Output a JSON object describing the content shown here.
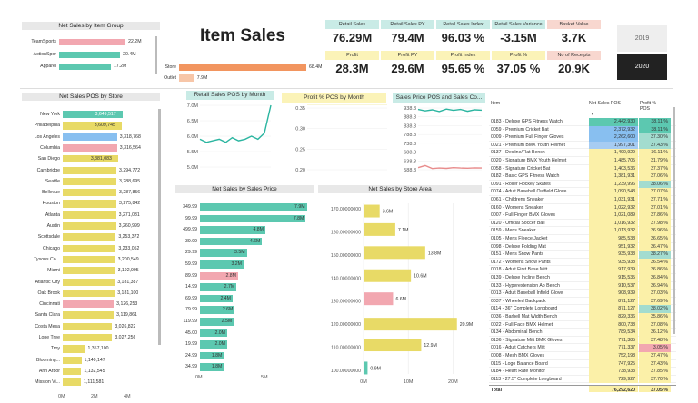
{
  "title": "Item Sales",
  "item_group": {
    "header": "Net Sales by Item Group",
    "rows": [
      {
        "label": "TeamSports",
        "value": "22.2M",
        "frac": 0.86,
        "color": "#f2a7b0"
      },
      {
        "label": "ActionSpor",
        "value": "20.4M",
        "frac": 0.79,
        "color": "#5cc8b0"
      },
      {
        "label": "Apparel",
        "value": "17.2M",
        "frac": 0.67,
        "color": "#5cc8b0"
      }
    ]
  },
  "channel": {
    "rows": [
      {
        "label": "Store",
        "value": "68.4M",
        "frac": 1.0,
        "color": "#f2955f"
      },
      {
        "label": "Outlet",
        "value": "7.9M",
        "frac": 0.12,
        "color": "#f7c6a8"
      }
    ]
  },
  "kpis": {
    "row1": [
      {
        "label": "Retail Sales",
        "value": "76.29M",
        "bg": "#c9ebe6"
      },
      {
        "label": "Retail Sales PY",
        "value": "79.4M",
        "bg": "#c9ebe6"
      },
      {
        "label": "Retail Sales Index",
        "value": "96.03 %",
        "bg": "#c9ebe6"
      },
      {
        "label": "Retail Sales Variance",
        "value": "-3.15M",
        "bg": "#c9ebe6"
      },
      {
        "label": "Basket Value",
        "value": "3.7K",
        "bg": "#f8d7cf"
      }
    ],
    "row2": [
      {
        "label": "Profit",
        "value": "28.3M",
        "bg": "#fbf3b8"
      },
      {
        "label": "Profit PY",
        "value": "29.6M",
        "bg": "#fbf3b8"
      },
      {
        "label": "Profit Index",
        "value": "95.65 %",
        "bg": "#fbf3b8"
      },
      {
        "label": "Profit %",
        "value": "37.05 %",
        "bg": "#fbf3b8"
      },
      {
        "label": "No of Receipts",
        "value": "20.9K",
        "bg": "#f8d7cf"
      }
    ]
  },
  "years": {
    "y1": "2019",
    "y2": "2020"
  },
  "by_store": {
    "header": "Net Sales POS by Store",
    "axis": [
      "0M",
      "2M",
      "4M"
    ],
    "rows": [
      {
        "label": "New York",
        "value": "3,649,517",
        "frac": 0.91,
        "color": "#5cc8b0"
      },
      {
        "label": "Philadelphia",
        "value": "3,609,745",
        "frac": 0.9,
        "color": "#e8da66"
      },
      {
        "label": "Los Angeles",
        "value": "3,318,768",
        "frac": 0.83,
        "color": "#88bff0"
      },
      {
        "label": "Columbia",
        "value": "3,316,564",
        "frac": 0.83,
        "color": "#f2a7b0"
      },
      {
        "label": "San Diego",
        "value": "3,381,083",
        "frac": 0.845,
        "color": "#e8da66"
      },
      {
        "label": "Cambridge",
        "value": "3,294,772",
        "frac": 0.82,
        "color": "#e8da66"
      },
      {
        "label": "Seattle",
        "value": "3,288,695",
        "frac": 0.82,
        "color": "#e8da66"
      },
      {
        "label": "Bellevue",
        "value": "3,287,856",
        "frac": 0.82,
        "color": "#e8da66"
      },
      {
        "label": "Houston",
        "value": "3,275,842",
        "frac": 0.82,
        "color": "#e8da66"
      },
      {
        "label": "Atlanta",
        "value": "3,271,031",
        "frac": 0.815,
        "color": "#e8da66"
      },
      {
        "label": "Austin",
        "value": "3,260,999",
        "frac": 0.815,
        "color": "#e8da66"
      },
      {
        "label": "Scottsdale",
        "value": "3,253,372",
        "frac": 0.81,
        "color": "#e8da66"
      },
      {
        "label": "Chicago",
        "value": "3,233,052",
        "frac": 0.81,
        "color": "#e8da66"
      },
      {
        "label": "Tysons Co...",
        "value": "3,200,549",
        "frac": 0.8,
        "color": "#e8da66"
      },
      {
        "label": "Miami",
        "value": "3,192,995",
        "frac": 0.8,
        "color": "#e8da66"
      },
      {
        "label": "Atlantic City",
        "value": "3,181,387",
        "frac": 0.795,
        "color": "#e8da66"
      },
      {
        "label": "Oak Brook",
        "value": "3,181,100",
        "frac": 0.795,
        "color": "#e8da66"
      },
      {
        "label": "Cincinnati",
        "value": "3,126,253",
        "frac": 0.78,
        "color": "#f2a7b0"
      },
      {
        "label": "Santa Clara",
        "value": "3,119,861",
        "frac": 0.78,
        "color": "#e8da66"
      },
      {
        "label": "Costa Mesa",
        "value": "3,026,822",
        "frac": 0.755,
        "color": "#e8da66"
      },
      {
        "label": "Lone Tree",
        "value": "3,027,256",
        "frac": 0.755,
        "color": "#e8da66"
      },
      {
        "label": "Troy",
        "value": "1,357,100",
        "frac": 0.34,
        "color": "#e8da66"
      },
      {
        "label": "Blooming...",
        "value": "1,140,147",
        "frac": 0.285,
        "color": "#e8da66"
      },
      {
        "label": "Ann Arbor",
        "value": "1,132,545",
        "frac": 0.283,
        "color": "#e8da66"
      },
      {
        "label": "Mission Vi...",
        "value": "1,111,581",
        "frac": 0.278,
        "color": "#e8da66"
      }
    ]
  },
  "retail_month": {
    "header": "Retail Sales POS by Month",
    "yticks": [
      "7.0M",
      "6.5M",
      "6.0M",
      "5.5M",
      "5.0M"
    ],
    "values": [
      5.9,
      5.8,
      5.85,
      5.9,
      5.8,
      5.95,
      5.85,
      5.9,
      6.0,
      5.9,
      6.1,
      7.0
    ],
    "color": "#2bb5a0"
  },
  "profit_month": {
    "header": "Profit % POS by Month",
    "yticks": [
      "0.35",
      "0.30",
      "0.25",
      "0.20"
    ],
    "values": [
      0.365,
      0.37,
      0.368,
      0.372,
      0.37,
      0.371,
      0.369,
      0.372,
      0.37,
      0.368,
      0.37,
      0.365
    ],
    "color": "#e8da66"
  },
  "sales_price_combo": {
    "header": "Sales Price POS and Sales Co...",
    "yticks": [
      "938.3",
      "888.3",
      "838.3",
      "788.3",
      "738.3",
      "688.3",
      "638.3",
      "588.3"
    ],
    "line1": [
      930,
      922,
      928,
      918,
      932,
      925,
      930,
      920,
      928,
      926
    ],
    "line2": [
      600,
      612,
      595,
      598,
      596,
      600,
      598,
      597,
      599,
      598
    ],
    "c1": "#2bb5a0",
    "c2": "#e88c8c"
  },
  "by_price": {
    "header": "Net Sales by Sales Price",
    "axis": [
      "0M",
      "5M"
    ],
    "rows": [
      {
        "label": "349.99",
        "value": "7.9M",
        "frac": 0.98,
        "color": "#5cc8b0"
      },
      {
        "label": "99.99",
        "value": "7.8M",
        "frac": 0.97,
        "color": "#5cc8b0"
      },
      {
        "label": "499.99",
        "value": "4.8M",
        "frac": 0.6,
        "color": "#5cc8b0"
      },
      {
        "label": "39.99",
        "value": "4.6M",
        "frac": 0.57,
        "color": "#5cc8b0"
      },
      {
        "label": "29.99",
        "value": "3.5M",
        "frac": 0.43,
        "color": "#5cc8b0"
      },
      {
        "label": "59.99",
        "value": "3.2M",
        "frac": 0.4,
        "color": "#5cc8b0"
      },
      {
        "label": "89.99",
        "value": "2.8M",
        "frac": 0.35,
        "color": "#f2a7b0"
      },
      {
        "label": "14.99",
        "value": "2.7M",
        "frac": 0.335,
        "color": "#5cc8b0"
      },
      {
        "label": "69.99",
        "value": "2.4M",
        "frac": 0.3,
        "color": "#5cc8b0"
      },
      {
        "label": "79.99",
        "value": "2.6M",
        "frac": 0.32,
        "color": "#5cc8b0"
      },
      {
        "label": "119.99",
        "value": "2.5M",
        "frac": 0.31,
        "color": "#5cc8b0"
      },
      {
        "label": "45.00",
        "value": "2.0M",
        "frac": 0.25,
        "color": "#5cc8b0"
      },
      {
        "label": "19.99",
        "value": "2.0M",
        "frac": 0.25,
        "color": "#5cc8b0"
      },
      {
        "label": "24.99",
        "value": "1.8M",
        "frac": 0.22,
        "color": "#5cc8b0"
      },
      {
        "label": "34.99",
        "value": "1.8M",
        "frac": 0.22,
        "color": "#5cc8b0"
      }
    ]
  },
  "by_area": {
    "header": "Net Sales by Store Area",
    "yticks": [
      "170.00000000",
      "160.00000000",
      "150.00000000",
      "140.00000000",
      "130.00000000",
      "120.00000000",
      "110.00000000",
      "100.00000000"
    ],
    "xticks": [
      "0M",
      "10M",
      "20M"
    ],
    "bars": [
      {
        "area": 169,
        "value": 3.6,
        "label": "3.6M",
        "color": "#e8da66"
      },
      {
        "area": 161,
        "value": 7.1,
        "label": "7.1M",
        "color": "#e8da66"
      },
      {
        "area": 151,
        "value": 13.8,
        "label": "13.8M",
        "color": "#e8da66"
      },
      {
        "area": 141,
        "value": 10.6,
        "label": "10.6M",
        "color": "#e8da66"
      },
      {
        "area": 131,
        "value": 6.6,
        "label": "6.6M",
        "color": "#f2a7b0"
      },
      {
        "area": 120,
        "value": 20.9,
        "label": "20.9M",
        "color": "#e8da66"
      },
      {
        "area": 111,
        "value": 12.9,
        "label": "12.9M",
        "color": "#e8da66"
      },
      {
        "area": 101,
        "value": 0.9,
        "label": "0.9M",
        "color": "#5cc8b0"
      }
    ]
  },
  "items_table": {
    "col_item": "Item",
    "col_sales": "Net Sales POS",
    "col_profit": "Profit % POS",
    "rows": [
      [
        "0183 - Deluxe GPS Fitness Watch",
        "2,442,930",
        "38.11 %",
        "#5cc8b0",
        "#5cc8b0"
      ],
      [
        "0059 - Premium Cricket Bat",
        "2,372,932",
        "38.11 %",
        "#88bff0",
        "#5cc8b0"
      ],
      [
        "0009 - Premium Full Finger Gloves",
        "2,262,600",
        "37.30 %",
        "#88bff0",
        "#a3dccf"
      ],
      [
        "0021 - Premium BMX Youth Helmet",
        "1,997,301",
        "37.43 %",
        "#a6ccf2",
        "#a3dccf"
      ],
      [
        "0137 - Decline/Flat Bench",
        "1,490,929",
        "36.11 %",
        "#fbf0a8",
        "#fbf0a8"
      ],
      [
        "0020 - Signature BMX Youth Helmet",
        "1,485,705",
        "31.79 %",
        "#fbf0a8",
        "#fbf0a8"
      ],
      [
        "0058 - Signature Cricket Bat",
        "1,403,536",
        "37.37 %",
        "#fbf0a8",
        "#fbf0a8"
      ],
      [
        "0182 - Basic GPS Fitness Watch",
        "1,381,931",
        "37.06 %",
        "#fbf0a8",
        "#fbf0a8"
      ],
      [
        "0091 - Roller Hockey Skates",
        "1,239,996",
        "38.06 %",
        "#fbf0a8",
        "#a3dccf"
      ],
      [
        "0074 - Adult Baseball Outfield Glove",
        "1,090,543",
        "37.07 %",
        "#fbf0a8",
        "#fbf0a8"
      ],
      [
        "0061 - Childrens Sneaker",
        "1,031,931",
        "37.71 %",
        "#fbf0a8",
        "#fbf0a8"
      ],
      [
        "0160 - Womens Sneaker",
        "1,022,932",
        "37.01 %",
        "#fbf0a8",
        "#fbf0a8"
      ],
      [
        "0007 - Full Finger BMX Gloves",
        "1,021,089",
        "37.86 %",
        "#fbf0a8",
        "#fbf0a8"
      ],
      [
        "0120 - Official Soccer Ball",
        "1,016,932",
        "37.98 %",
        "#fbf0a8",
        "#fbf0a8"
      ],
      [
        "0159 - Mens Sneaker",
        "1,013,932",
        "36.96 %",
        "#fbf0a8",
        "#fbf0a8"
      ],
      [
        "0105 - Mens Fleece Jacket",
        "985,538",
        "36.65 %",
        "#fbf0a8",
        "#fbf0a8"
      ],
      [
        "0098 - Deluxe Folding Mat",
        "951,932",
        "36.47 %",
        "#fbf0a8",
        "#fbf0a8"
      ],
      [
        "0151 - Mens Snow Pants",
        "935,938",
        "38.27 %",
        "#fbf0a8",
        "#a3dccf"
      ],
      [
        "0172 - Womens Snow Pants",
        "935,938",
        "36.54 %",
        "#fbf0a8",
        "#fbf0a8"
      ],
      [
        "0018 - Adult First Base Mitt",
        "917,939",
        "36.86 %",
        "#fbf0a8",
        "#fbf0a8"
      ],
      [
        "0139 - Deluxe Incline Bench",
        "915,535",
        "36.84 %",
        "#fbf0a8",
        "#fbf0a8"
      ],
      [
        "0133 - Hyperextension Ab Bench",
        "910,537",
        "36.94 %",
        "#fbf0a8",
        "#fbf0a8"
      ],
      [
        "0013 - Adult Baseball Infield Glove",
        "908,939",
        "37.03 %",
        "#fbf0a8",
        "#fbf0a8"
      ],
      [
        "0037 - Wheeled Backpack",
        "871,127",
        "37.69 %",
        "#fbf0a8",
        "#fbf0a8"
      ],
      [
        "0114 - 36\" Complete Longboard",
        "871,127",
        "38.02 %",
        "#fbf0a8",
        "#a3dccf"
      ],
      [
        "0036 - Barbell Mat Width Bench",
        "829,336",
        "35.86 %",
        "#fbf0a8",
        "#fbf0a8"
      ],
      [
        "0022 - Full Face BMX Helmet",
        "800,738",
        "37.08 %",
        "#fbf0a8",
        "#fbf0a8"
      ],
      [
        "0134 - Abdominal Bench",
        "789,534",
        "36.12 %",
        "#fbf0a8",
        "#fbf0a8"
      ],
      [
        "0136 - Signature Mitt BMX Gloves",
        "771,385",
        "37.48 %",
        "#fbf0a8",
        "#fbf0a8"
      ],
      [
        "0016 - Adult Catchers Mitt",
        "771,337",
        "3.05 %",
        "#fbf0a8",
        "#f2a7b0"
      ],
      [
        "0008 - Mesh BMX Gloves",
        "752,198",
        "37.47 %",
        "#fbf0a8",
        "#fbf0a8"
      ],
      [
        "0115 - Logo Balance Board",
        "747,925",
        "37.43 %",
        "#fbf0a8",
        "#fbf0a8"
      ],
      [
        "0184 - Heart Rate Monitor",
        "738,933",
        "37.85 %",
        "#fbf0a8",
        "#fbf0a8"
      ],
      [
        "0113 - 27.5\" Complete Longboard",
        "729,927",
        "37.70 %",
        "#fbf0a8",
        "#fbf0a8"
      ]
    ],
    "total": {
      "label": "Total",
      "sales": "76,292,620",
      "profit": "37.05 %"
    }
  }
}
